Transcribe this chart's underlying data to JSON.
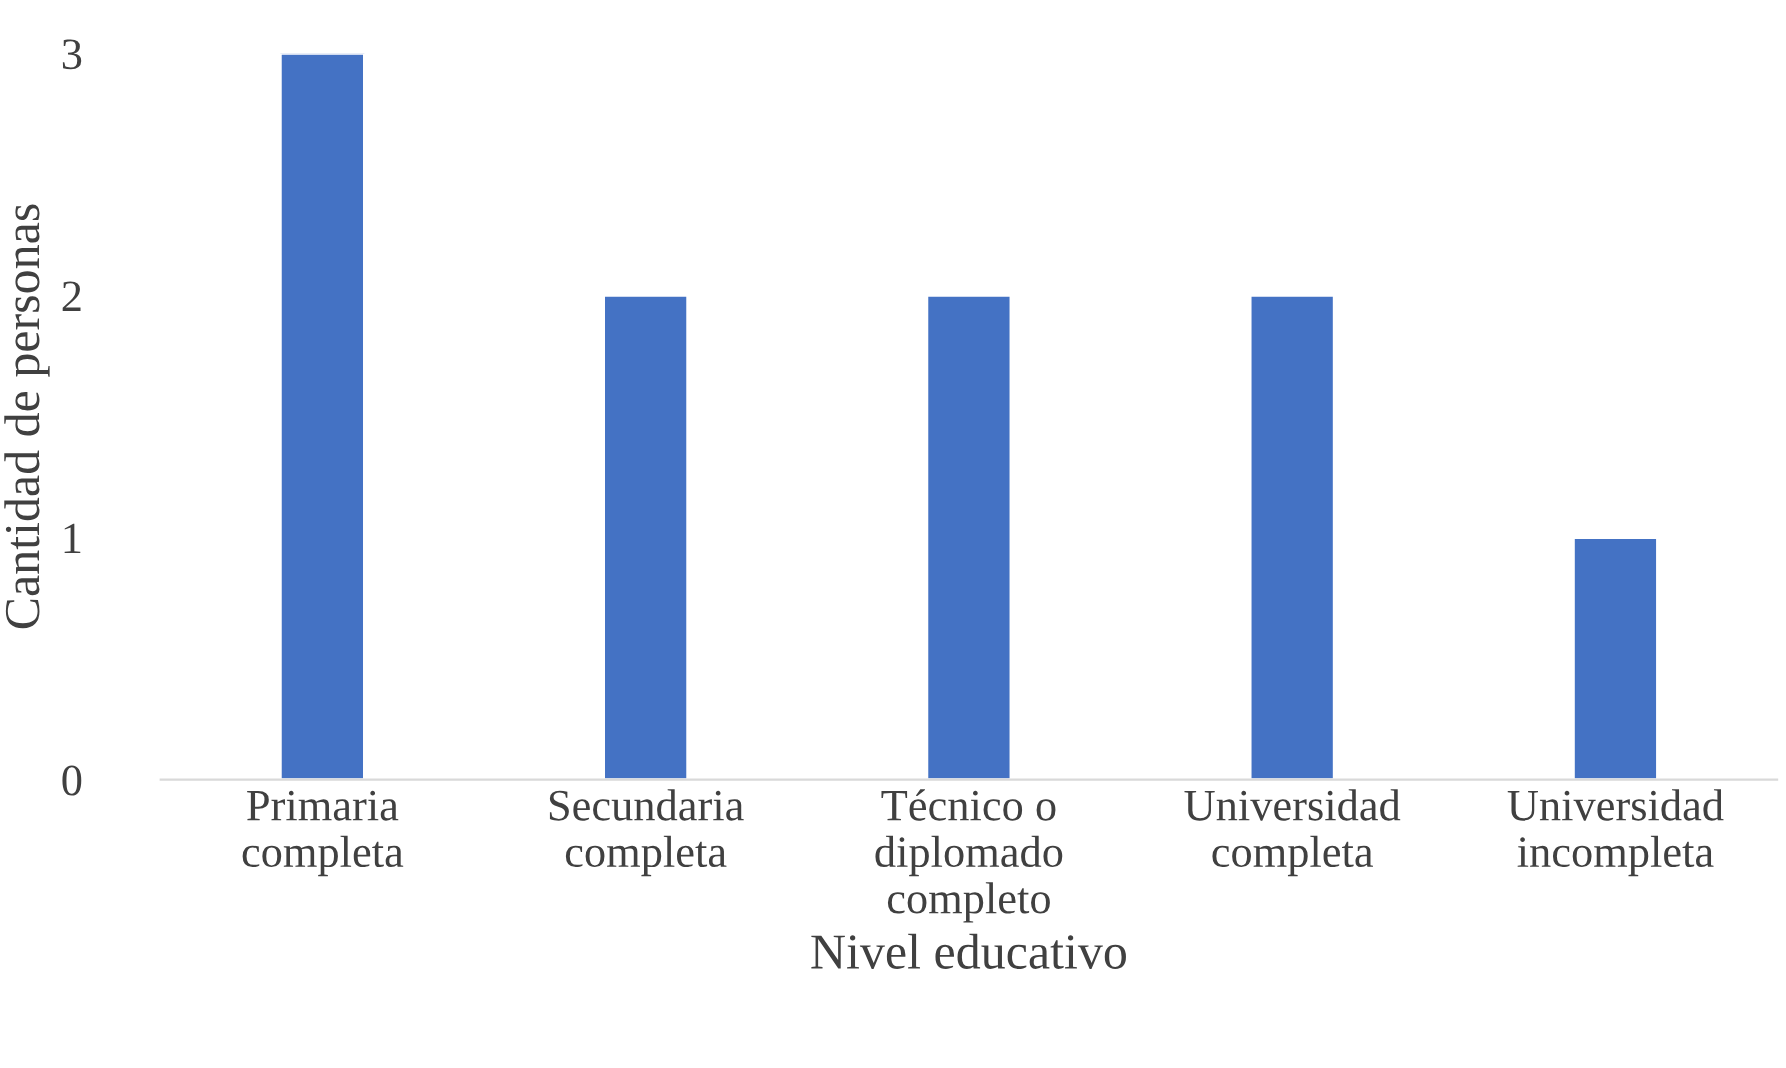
{
  "chart_data": {
    "type": "bar",
    "xlabel": "Nivel educativo",
    "ylabel": "Cantidad de personas",
    "categories": [
      "Primaria\ncompleta",
      "Secundaria\ncompleta",
      "Técnico o\ndiplomado\ncompleto",
      "Universidad\ncompleta",
      "Universidad\nincompleta"
    ],
    "values": [
      3,
      2,
      2,
      2,
      1
    ],
    "color": "#4472c4",
    "ylim": [
      0,
      3
    ],
    "yticks": [
      0,
      1,
      2,
      3
    ],
    "grid": false,
    "legend": false
  }
}
